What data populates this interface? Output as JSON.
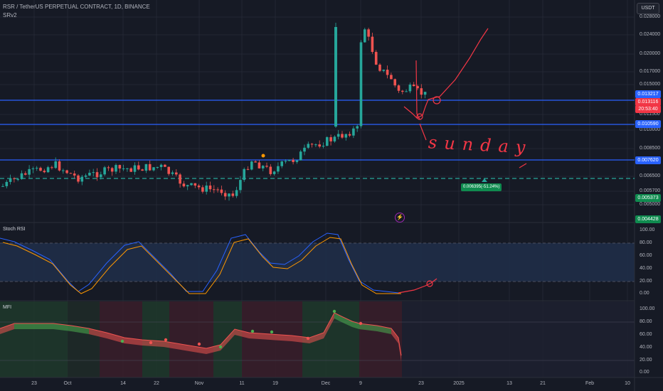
{
  "header": {
    "symbol_line": "RSR / TetherUS PERPETUAL CONTRACT, 1D, BINANCE",
    "indicator": "SRv2",
    "currency_button": "USDT"
  },
  "price_axis": {
    "ticks": [
      "0.028000",
      "0.024000",
      "0.020000",
      "0.017000",
      "0.015000",
      "0.011500",
      "0.010000",
      "0.008500",
      "0.006500",
      "0.005700",
      "0.005000"
    ],
    "tags": {
      "upper_line": "0.013217",
      "last_price": "0.013116",
      "countdown": "20:53:40",
      "mid_line": "0.010590",
      "low_line": "0.007620",
      "green_level": "0.005373",
      "bottom_level": "0.004428"
    }
  },
  "alert_label": "0.006395(-51.24%)",
  "annotation_text": "sunday",
  "stoch_rsi": {
    "label": "Stoch RSI",
    "ticks": [
      "100.00",
      "80.00",
      "60.00",
      "40.00",
      "20.00",
      "0.00"
    ]
  },
  "mfi": {
    "label": "MFI",
    "ticks": [
      "100.00",
      "80.00",
      "60.00",
      "40.00",
      "20.00",
      "0.00"
    ]
  },
  "time_axis": [
    {
      "label": "23"
    },
    {
      "label": "Oct"
    },
    {
      "label": "14"
    },
    {
      "label": "22"
    },
    {
      "label": "Nov"
    },
    {
      "label": "11"
    },
    {
      "label": "19"
    },
    {
      "label": "Dec"
    },
    {
      "label": "9"
    },
    {
      "label": "23"
    },
    {
      "label": "2025"
    },
    {
      "label": "13"
    },
    {
      "label": "21"
    },
    {
      "label": "Feb"
    },
    {
      "label": "10"
    }
  ],
  "colors": {
    "background": "#161a25",
    "up": "#26a69a",
    "down": "#ef5350",
    "level_line": "#2962ff",
    "drawing": "#f23645",
    "stoch_k": "#2962ff",
    "stoch_d": "#ff9800"
  }
}
